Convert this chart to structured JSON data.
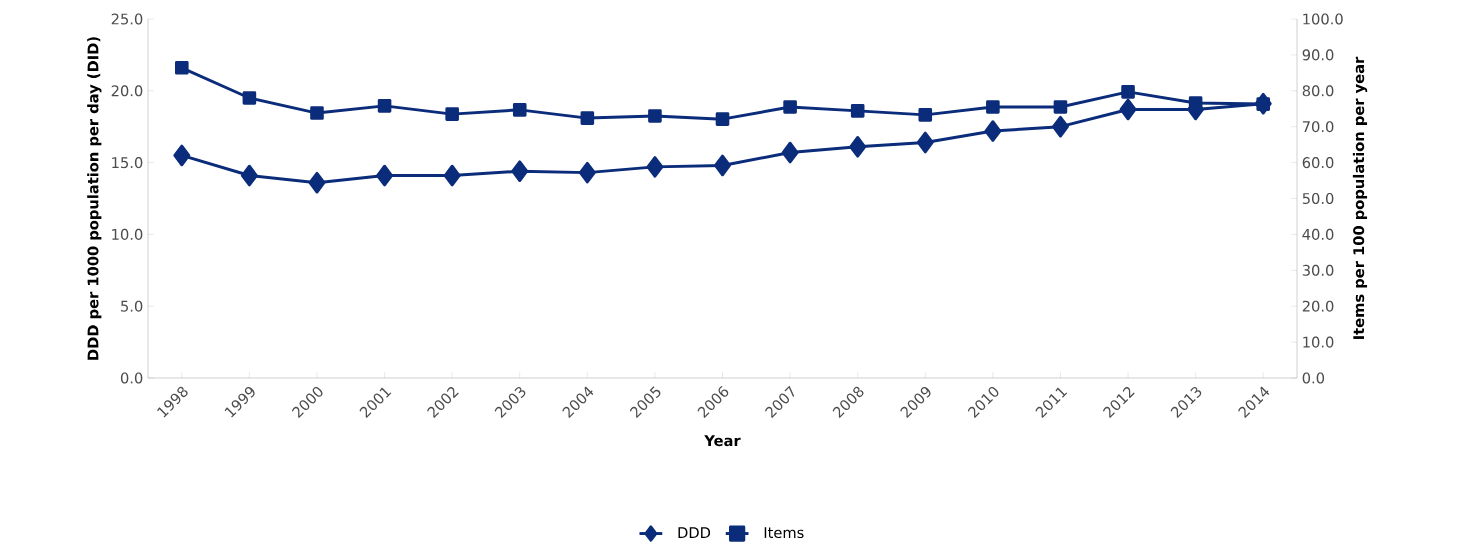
{
  "chart_data": {
    "type": "line",
    "xlabel": "Year",
    "ylabel": "DDD per 1000 population per day (DID)",
    "y2label": "Items per 100 population per year",
    "categories": [
      "1998",
      "1999",
      "2000",
      "2001",
      "2002",
      "2003",
      "2004",
      "2005",
      "2006",
      "2007",
      "2008",
      "2009",
      "2010",
      "2011",
      "2012",
      "2013",
      "2014"
    ],
    "series": [
      {
        "name": "DDD",
        "color": "#0b2c7a",
        "marker": "diamond",
        "values": [
          15.5,
          14.1,
          13.6,
          14.1,
          14.1,
          14.4,
          14.3,
          14.7,
          14.8,
          15.7,
          16.1,
          16.4,
          17.2,
          17.5,
          18.7,
          18.7,
          19.1
        ]
      },
      {
        "name": "Items",
        "color": "#0b2c7a",
        "marker": "square",
        "axis": "y2",
        "values": [
          86.4,
          78.0,
          73.8,
          75.8,
          73.5,
          74.7,
          72.4,
          73.0,
          72.1,
          75.5,
          74.4,
          73.3,
          75.5,
          75.5,
          79.7,
          76.6,
          76.3
        ]
      }
    ],
    "ylim": [
      0,
      25
    ],
    "yticks": [
      {
        "value": 0,
        "label": "0.0"
      },
      {
        "value": 5,
        "label": "5.0"
      },
      {
        "value": 10,
        "label": "10.0"
      },
      {
        "value": 15,
        "label": "15.0"
      },
      {
        "value": 20,
        "label": "20.0"
      },
      {
        "value": 25,
        "label": "25.0"
      }
    ],
    "y2lim": [
      0,
      100
    ],
    "y2ticks": [
      {
        "value": 0,
        "label": "0.0"
      },
      {
        "value": 10,
        "label": "10.0"
      },
      {
        "value": 20,
        "label": "20.0"
      },
      {
        "value": 30,
        "label": "30.0"
      },
      {
        "value": 40,
        "label": "40.0"
      },
      {
        "value": 50,
        "label": "50.0"
      },
      {
        "value": 60,
        "label": "60.0"
      },
      {
        "value": 70,
        "label": "70.0"
      },
      {
        "value": 80,
        "label": "80.0"
      },
      {
        "value": 90,
        "label": "90.0"
      },
      {
        "value": 100,
        "label": "100.0"
      }
    ],
    "grid": false,
    "legend": "bottom",
    "line_style": "solid"
  }
}
